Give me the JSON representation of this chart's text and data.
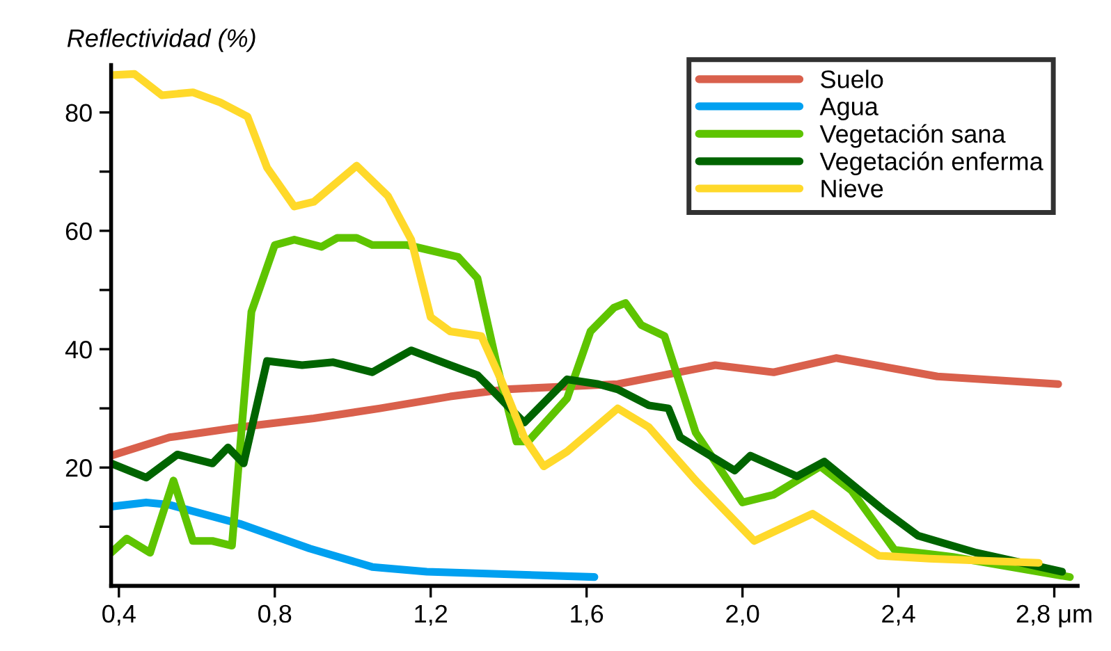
{
  "chart_data": {
    "type": "line",
    "ylabel": "Reflectividad (%)",
    "xlim": [
      0.38,
      2.86
    ],
    "ylim": [
      0,
      88
    ],
    "xticks": [
      {
        "value": 0.4,
        "label": "0,4"
      },
      {
        "value": 0.8,
        "label": "0,8"
      },
      {
        "value": 1.2,
        "label": "1,2"
      },
      {
        "value": 1.6,
        "label": "1,6"
      },
      {
        "value": 2.0,
        "label": "2,0"
      },
      {
        "value": 2.4,
        "label": "2,4"
      },
      {
        "value": 2.8,
        "label": "2,8 μm"
      }
    ],
    "yticks": [
      {
        "value": 10,
        "label": null
      },
      20,
      {
        "value": 30,
        "label": null
      },
      40,
      {
        "value": 50,
        "label": null
      },
      60,
      {
        "value": 70,
        "label": null
      },
      80
    ],
    "legend": "top right",
    "grid": false,
    "marker": "none",
    "line_style": "solid",
    "series": [
      {
        "name": "Suelo",
        "color": "#d9604c",
        "x": [
          0.38,
          0.53,
          0.71,
          0.9,
          1.07,
          1.25,
          1.39,
          1.68,
          1.93,
          2.08,
          2.24,
          2.5,
          2.81
        ],
        "values": [
          22,
          25.1,
          26.8,
          28.3,
          30,
          32,
          33.2,
          34.1,
          37.3,
          36.1,
          38.5,
          35.4,
          34.1
        ]
      },
      {
        "name": "Agua",
        "color": "#00a0f0",
        "x": [
          0.38,
          0.47,
          0.53,
          0.71,
          0.89,
          1.05,
          1.19,
          1.62
        ],
        "values": [
          13.4,
          14.1,
          13.7,
          10.5,
          6.3,
          3.2,
          2.4,
          1.5
        ]
      },
      {
        "name": "Vegetación sana",
        "color": "#5ec400",
        "x": [
          0.38,
          0.42,
          0.48,
          0.54,
          0.59,
          0.64,
          0.69,
          0.74,
          0.8,
          0.85,
          0.92,
          0.96,
          1.01,
          1.05,
          1.14,
          1.27,
          1.32,
          1.37,
          1.42,
          1.45,
          1.55,
          1.61,
          1.67,
          1.7,
          1.74,
          1.8,
          1.88,
          2.0,
          2.08,
          2.2,
          2.28,
          2.39,
          2.54,
          2.84
        ],
        "values": [
          5.6,
          8,
          5.6,
          17.8,
          7.6,
          7.6,
          6.8,
          46.3,
          57.6,
          58.5,
          57.3,
          58.8,
          58.8,
          57.6,
          57.6,
          55.6,
          52,
          37.3,
          24.4,
          24.4,
          31.7,
          43,
          47,
          47.8,
          44.1,
          42.2,
          25.9,
          14.1,
          15.4,
          20.2,
          16.1,
          6.1,
          4.9,
          1.5
        ]
      },
      {
        "name": "Vegetación enferma",
        "color": "#006400",
        "x": [
          0.38,
          0.47,
          0.55,
          0.64,
          0.68,
          0.72,
          0.78,
          0.87,
          0.95,
          1.05,
          1.15,
          1.25,
          1.32,
          1.44,
          1.55,
          1.63,
          1.68,
          1.76,
          1.81,
          1.84,
          1.98,
          2.02,
          2.14,
          2.21,
          2.36,
          2.45,
          2.6,
          2.82
        ],
        "values": [
          20.7,
          18.3,
          22.2,
          20.7,
          23.4,
          20.7,
          38,
          37.3,
          37.8,
          36.1,
          39.8,
          37.3,
          35.6,
          27.6,
          34.9,
          34.1,
          33.2,
          30.5,
          30,
          25.1,
          19.5,
          22,
          18.5,
          21,
          12.9,
          8.5,
          5.6,
          2.4
        ]
      },
      {
        "name": "Nieve",
        "color": "#ffd92a",
        "x": [
          0.38,
          0.44,
          0.51,
          0.59,
          0.66,
          0.73,
          0.78,
          0.85,
          0.9,
          1.01,
          1.09,
          1.15,
          1.2,
          1.25,
          1.33,
          1.38,
          1.44,
          1.49,
          1.55,
          1.68,
          1.76,
          1.88,
          2.03,
          2.18,
          2.35,
          2.48,
          2.76
        ],
        "values": [
          86.3,
          86.5,
          82.9,
          83.4,
          81.7,
          79.3,
          70.7,
          64.1,
          64.9,
          71,
          65.9,
          58.5,
          45.4,
          43,
          42.2,
          34.9,
          25.1,
          20.2,
          22.7,
          30,
          26.8,
          17.8,
          7.6,
          12.2,
          5.1,
          4.6,
          3.9
        ]
      }
    ]
  }
}
